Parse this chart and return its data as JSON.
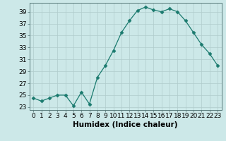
{
  "x": [
    0,
    1,
    2,
    3,
    4,
    5,
    6,
    7,
    8,
    9,
    10,
    11,
    12,
    13,
    14,
    15,
    16,
    17,
    18,
    19,
    20,
    21,
    22,
    23
  ],
  "y": [
    24.5,
    24.0,
    24.5,
    25.0,
    25.0,
    23.2,
    25.5,
    23.5,
    28.0,
    30.0,
    32.5,
    35.5,
    37.5,
    39.2,
    39.8,
    39.3,
    39.0,
    39.5,
    39.0,
    37.5,
    35.5,
    33.5,
    32.0,
    30.0
  ],
  "line_color": "#1a7a6e",
  "marker": "D",
  "marker_size": 2.5,
  "bg_color": "#cce8e8",
  "grid_color": "#b0cccc",
  "xlabel": "Humidex (Indice chaleur)",
  "xlim": [
    -0.5,
    23.5
  ],
  "ylim": [
    22.5,
    40.5
  ],
  "yticks": [
    23,
    25,
    27,
    29,
    31,
    33,
    35,
    37,
    39
  ],
  "xtick_labels": [
    "0",
    "1",
    "2",
    "3",
    "4",
    "5",
    "6",
    "7",
    "8",
    "9",
    "10",
    "11",
    "12",
    "13",
    "14",
    "15",
    "16",
    "17",
    "18",
    "19",
    "20",
    "21",
    "22",
    "23"
  ],
  "tick_fontsize": 6.5,
  "xlabel_fontsize": 7.5
}
